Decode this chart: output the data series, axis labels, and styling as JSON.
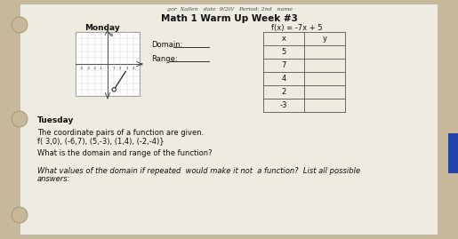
{
  "title": "Math 1 Warm Up Week #3",
  "background_color": "#c8b89a",
  "paper_color": "#eeebe0",
  "monday_label": "Monday",
  "tuesday_label": "Tuesday",
  "domain_label": "Domain:",
  "range_label": "Range:",
  "fx_label": "f(x) = -7x + 5",
  "table_x_values": [
    "5",
    "7",
    "4",
    "2",
    "-3"
  ],
  "table_header_x": "x",
  "table_header_y": "y",
  "tuesday_line1": "The coordinate pairs of a function are given.",
  "tuesday_line2": "f( 3,0), (-6,7), (5,-3), (1,4), (-2,-4)}",
  "tuesday_line3": "What is the domain and range of the function?",
  "tuesday_line4": "What values of the domain if repeated  would make it not  a function?  List all possible",
  "tuesday_line5": "answers:"
}
